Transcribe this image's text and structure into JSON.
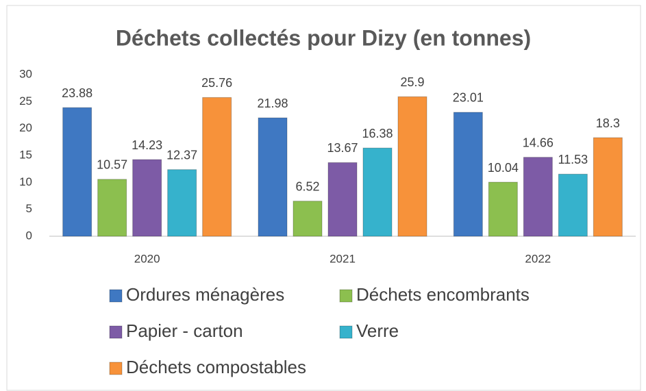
{
  "chart_data": {
    "type": "bar",
    "title": "Déchets collectés pour Dizy (en tonnes)",
    "categories": [
      "2020",
      "2021",
      "2022"
    ],
    "series": [
      {
        "name": "Ordures ménagères",
        "color": "#3f78c2",
        "values": [
          23.88,
          21.98,
          23.01
        ]
      },
      {
        "name": "Déchets encombrants",
        "color": "#8cbf4f",
        "values": [
          10.57,
          6.52,
          10.04
        ]
      },
      {
        "name": "Papier - carton",
        "color": "#7d5ba6",
        "values": [
          14.23,
          13.67,
          14.66
        ]
      },
      {
        "name": "Verre",
        "color": "#36b2cc",
        "values": [
          12.37,
          16.38,
          11.53
        ]
      },
      {
        "name": "Déchets compostables",
        "color": "#f7923a",
        "values": [
          25.76,
          25.9,
          18.3
        ]
      }
    ],
    "ylim": [
      0,
      30
    ],
    "yticks": [
      0,
      5,
      10,
      15,
      20,
      25,
      30
    ],
    "grid": false,
    "legend": "bottom"
  }
}
